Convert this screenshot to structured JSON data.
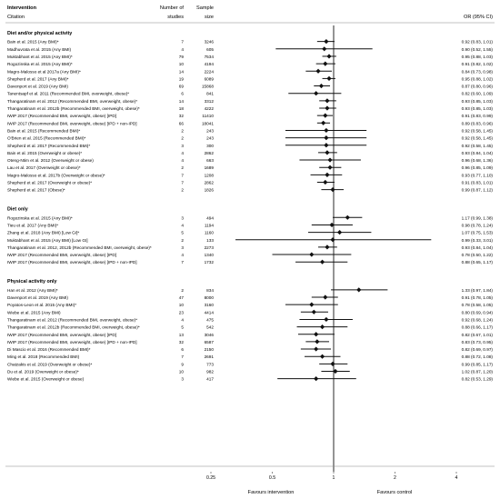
{
  "headers": {
    "intervention": "Intervention",
    "citation": "Citation",
    "n_studies_1": "Number of",
    "n_studies_2": "studies",
    "sample_1": "Sample",
    "sample_2": "size",
    "or": "OR (95% CI)"
  },
  "favours": {
    "left": "Favours intervention",
    "right": "Favours control"
  },
  "colors": {
    "marker": "#111111",
    "rule": "#888888",
    "text": "#222222"
  },
  "chart_data": {
    "type": "forest",
    "x_scale": "log",
    "xlim": [
      0.25,
      4
    ],
    "x_ticks": [
      {
        "value": 0.25,
        "label": "0.25"
      },
      {
        "value": 0.5,
        "label": "0.5"
      },
      {
        "value": 1,
        "label": "1"
      },
      {
        "value": 2,
        "label": "2"
      },
      {
        "value": 4,
        "label": "4"
      }
    ],
    "reference_line": 1,
    "groups": [
      {
        "title": "Diet and/or physical activity",
        "rows": [
          {
            "citation": "Bain et al. 2015 (Any BMI)*",
            "studies": "7",
            "size": "3246",
            "or": 0.92,
            "lo": 0.83,
            "hi": 1.01,
            "label": "0.92 (0.83, 1.01)"
          },
          {
            "citation": "Madhuvrata et al. 2015 (Any BMI)",
            "studies": "4",
            "size": "605",
            "or": 0.9,
            "lo": 0.52,
            "hi": 1.55,
            "label": "0.90 (0.52, 1.55)"
          },
          {
            "citation": "Muktabhant et al. 2015 (Any BMI)*",
            "studies": "79",
            "size": "7534",
            "or": 0.95,
            "lo": 0.88,
            "hi": 1.03,
            "label": "0.95 (0.88, 1.03)"
          },
          {
            "citation": "Rogozinska et al. 2015 (Any BMI)*",
            "studies": "10",
            "size": "4194",
            "or": 0.91,
            "lo": 0.82,
            "hi": 1.02,
            "label": "0.91 (0.82, 1.02)"
          },
          {
            "citation": "Magro-Malosso et al 2017a (Any BMI)*",
            "studies": "14",
            "size": "2224",
            "or": 0.84,
            "lo": 0.73,
            "hi": 0.98,
            "label": "0.84 (0.73, 0.98)"
          },
          {
            "citation": "Shepherd et al. 2017 (Any BMI)*",
            "studies": "19",
            "size": "6089",
            "or": 0.95,
            "lo": 0.88,
            "hi": 1.02,
            "label": "0.95 (0.88, 1.02)"
          },
          {
            "citation": "Davenport et al. 2019 (Any BMI)",
            "studies": "69",
            "size": "15868",
            "or": 0.87,
            "lo": 0.8,
            "hi": 0.96,
            "label": "0.87 (0.80, 0.96)"
          },
          {
            "citation": "Tanentsapf et al. 2011 (Recommended BMI, overweight, obese)*",
            "studies": "6",
            "size": "841",
            "or": 0.82,
            "lo": 0.6,
            "hi": 1.09,
            "label": "0.82 (0.60, 1.09)"
          },
          {
            "citation": "Thangaratinam et al. 2012 (Recommended BMI, overweight, obese)*",
            "studies": "14",
            "size": "3312",
            "or": 0.93,
            "lo": 0.85,
            "hi": 1.03,
            "label": "0.93 (0.85, 1.03)"
          },
          {
            "citation": "Thangaratinam et al. 2012b (Recommended BMI, overweight, obese)*",
            "studies": "18",
            "size": "4222",
            "or": 0.93,
            "lo": 0.85,
            "hi": 1.03,
            "label": "0.93 (0.85, 1.03)"
          },
          {
            "citation": "IWIP 2017 (Recommended BMI, overweight, obese) [IPD]",
            "studies": "32",
            "size": "11410",
            "or": 0.91,
            "lo": 0.83,
            "hi": 0.99,
            "label": "0.91 (0.83, 0.99)"
          },
          {
            "citation": "IWIP 2017 (Recommended BMI, overweight, obese) [IPD + non-IPD]",
            "studies": "66",
            "size": "18041",
            "or": 0.89,
            "lo": 0.83,
            "hi": 0.96,
            "label": "0.89 (0.83, 0.96)"
          },
          {
            "citation": "Bain et al. 2015 (Recommended BMI)*",
            "studies": "2",
            "size": "243",
            "or": 0.92,
            "lo": 0.58,
            "hi": 1.45,
            "label": "0.92 (0.58, 1.45)"
          },
          {
            "citation": "O'Brien et al. 2015 (Recommended BMI)*",
            "studies": "2",
            "size": "243",
            "or": 0.92,
            "lo": 0.58,
            "hi": 1.45,
            "label": "0.92 (0.58, 1.45)"
          },
          {
            "citation": "Shepherd et al. 2017 (Recommended BMI)*",
            "studies": "3",
            "size": "300",
            "or": 0.92,
            "lo": 0.58,
            "hi": 1.45,
            "label": "0.92 (0.58, 1.45)"
          },
          {
            "citation": "Bain et al. 2015 (Overweight or obese)*",
            "studies": "4",
            "size": "2862",
            "or": 0.93,
            "lo": 0.84,
            "hi": 1.04,
            "label": "0.93 (0.84, 1.04)"
          },
          {
            "citation": "Oteng-Ntim et al. 2012 (Overweight or obese)",
            "studies": "4",
            "size": "663",
            "or": 0.96,
            "lo": 0.68,
            "hi": 1.36,
            "label": "0.96 (0.68, 1.36)"
          },
          {
            "citation": "Lau et al. 2017 (Overweight or obese)*",
            "studies": "2",
            "size": "1689",
            "or": 0.96,
            "lo": 0.85,
            "hi": 1.09,
            "label": "0.96 (0.85, 1.09)"
          },
          {
            "citation": "Magro-Malosso et al. 2017b (Overweight or obese)*",
            "studies": "7",
            "size": "1208",
            "or": 0.93,
            "lo": 0.77,
            "hi": 1.1,
            "label": "0.93 (0.77, 1.10)"
          },
          {
            "citation": "Shepherd et al. 2017 (Overweight or obese)*",
            "studies": "7",
            "size": "2862",
            "or": 0.91,
            "lo": 0.83,
            "hi": 1.01,
            "label": "0.91 (0.83, 1.01)"
          },
          {
            "citation": "Shepherd et al. 2017 (Obese)*",
            "studies": "2",
            "size": "1826",
            "or": 0.99,
            "lo": 0.87,
            "hi": 1.12,
            "label": "0.99 (0.87, 1.12)"
          }
        ]
      },
      {
        "title": "Diet only",
        "rows": [
          {
            "citation": "Rogozinska et al. 2015 (Any BMI)*",
            "studies": "3",
            "size": "494",
            "or": 1.17,
            "lo": 0.99,
            "hi": 1.38,
            "label": "1.17 (0.99, 1.38)"
          },
          {
            "citation": "Tieu et al. 2017 (Any BMI)*",
            "studies": "4",
            "size": "1194",
            "or": 0.98,
            "lo": 0.78,
            "hi": 1.24,
            "label": "0.98 (0.78, 1.24)"
          },
          {
            "citation": "Zhang et al. 2018 (Any BMI) [Low GI]*",
            "studies": "5",
            "size": "1160",
            "or": 1.07,
            "lo": 0.75,
            "hi": 1.53,
            "label": "1.07 (0.75, 1.53)"
          },
          {
            "citation": "Muktabhant et al. 2015 (Any BMI) [Low GI]",
            "studies": "2",
            "size": "133",
            "or": 0.99,
            "lo": 0.33,
            "hi": 3.01,
            "label": "0.99 (0.33, 3.01)"
          },
          {
            "citation": "Thangaratinam et al. 2012, 2012b (Recommended BMI, overweight, obese)*",
            "studies": "3",
            "size": "2273",
            "or": 0.93,
            "lo": 0.84,
            "hi": 1.04,
            "label": "0.93 (0.84, 1.04)"
          },
          {
            "citation": "IWIP 2017 (Recommended BMI, overweight, obese) [IPD]",
            "studies": "4",
            "size": "1340",
            "or": 0.78,
            "lo": 0.5,
            "hi": 1.22,
            "label": "0.78 (0.50, 1.22)"
          },
          {
            "citation": "IWIP 2017 (Recommended BMI, overweight, obese) [IPD + non-IPD]",
            "studies": "7",
            "size": "1732",
            "or": 0.88,
            "lo": 0.65,
            "hi": 1.17,
            "label": "0.88 (0.65, 1.17)"
          }
        ]
      },
      {
        "title": "Physical activity only",
        "rows": [
          {
            "citation": "Han et al. 2012 (Any BMI)*",
            "studies": "2",
            "size": "834",
            "or": 1.33,
            "lo": 0.97,
            "hi": 1.84,
            "label": "1.33 (0.97, 1.84)"
          },
          {
            "citation": "Davenport et al. 2019 (Any BMI)",
            "studies": "47",
            "size": "8000",
            "or": 0.91,
            "lo": 0.78,
            "hi": 1.05,
            "label": "0.91 (0.78, 1.05)"
          },
          {
            "citation": "Poyatos-Leon et al. 2015 (Any BMI)*",
            "studies": "10",
            "size": "3160",
            "or": 0.78,
            "lo": 0.58,
            "hi": 1.05,
            "label": "0.78 (0.58, 1.05)"
          },
          {
            "citation": "Wiebe et al. 2015 (Any BMI)",
            "studies": "23",
            "size": "4414",
            "or": 0.8,
            "lo": 0.69,
            "hi": 0.94,
            "label": "0.80 (0.69, 0.94)"
          },
          {
            "citation": "Thangaratinam et al. 2012 (Recommended BMI, overweight, obese)*",
            "studies": "4",
            "size": "475",
            "or": 0.92,
            "lo": 0.68,
            "hi": 1.24,
            "label": "0.92 (0.68, 1.24)"
          },
          {
            "citation": "Thangaratinam et al. 2012b (Recommended BMI, overweight, obese)*",
            "studies": "5",
            "size": "542",
            "or": 0.88,
            "lo": 0.66,
            "hi": 1.17,
            "label": "0.88 (0.66, 1.17)"
          },
          {
            "citation": "IWIP 2017 (Recommended BMI, overweight, obese) [IPD]",
            "studies": "13",
            "size": "3046",
            "or": 0.82,
            "lo": 0.67,
            "hi": 1.01,
            "label": "0.82 (0.67, 1.01)"
          },
          {
            "citation": "IWIP 2017 (Recommended BMI, overweight, obese) [IPD + non-IPD]",
            "studies": "32",
            "size": "6587",
            "or": 0.83,
            "lo": 0.73,
            "hi": 0.95,
            "label": "0.83 (0.73, 0.95)"
          },
          {
            "citation": "Di Mascio et al. 2016 (Recommended BMI)*",
            "studies": "6",
            "size": "2150",
            "or": 0.82,
            "lo": 0.69,
            "hi": 0.97,
            "label": "0.82 (0.69, 0.97)"
          },
          {
            "citation": "Ming et al. 2018 (Recommended BMI)",
            "studies": "7",
            "size": "2691",
            "or": 0.88,
            "lo": 0.72,
            "hi": 1.08,
            "label": "0.88 (0.72, 1.08)"
          },
          {
            "citation": "Chatzakis et al. 2019 (Overweight or obese)*",
            "studies": "9",
            "size": "773",
            "or": 0.99,
            "lo": 0.85,
            "hi": 1.17,
            "label": "0.99 (0.85, 1.17)"
          },
          {
            "citation": "Du et al. 2019 (Overweight or obese)*",
            "studies": "10",
            "size": "982",
            "or": 1.02,
            "lo": 0.87,
            "hi": 1.2,
            "label": "1.02 (0.87, 1.20)"
          },
          {
            "citation": "Wiebe et al. 2015 (Overweight or obese)",
            "studies": "3",
            "size": "417",
            "or": 0.82,
            "lo": 0.53,
            "hi": 1.29,
            "label": "0.82 (0.53, 1.29)"
          }
        ]
      }
    ]
  }
}
